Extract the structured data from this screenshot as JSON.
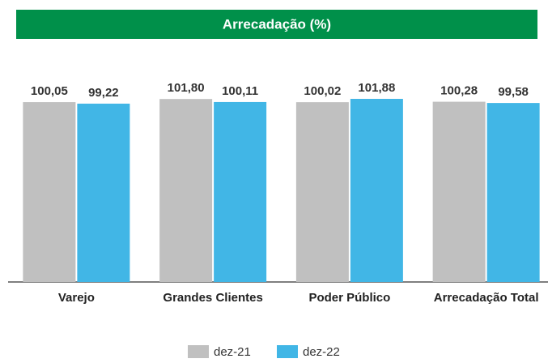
{
  "chart_data": {
    "type": "bar",
    "title": "Arrecadação (%)",
    "categories": [
      "Varejo",
      "Grandes Clientes",
      "Poder Público",
      "Arrecadação Total"
    ],
    "series": [
      {
        "name": "dez-21",
        "color": "#c0c0c0",
        "values": [
          100.05,
          101.8,
          100.02,
          100.28
        ],
        "value_labels": [
          "100,05",
          "101,80",
          "100,02",
          "100,28"
        ]
      },
      {
        "name": "dez-22",
        "color": "#41b6e6",
        "values": [
          99.22,
          100.11,
          101.88,
          99.58
        ],
        "value_labels": [
          "99,22",
          "100,11",
          "101,88",
          "99,58"
        ]
      }
    ],
    "ylim": [
      0,
      110
    ],
    "title_color": "#00904a"
  }
}
